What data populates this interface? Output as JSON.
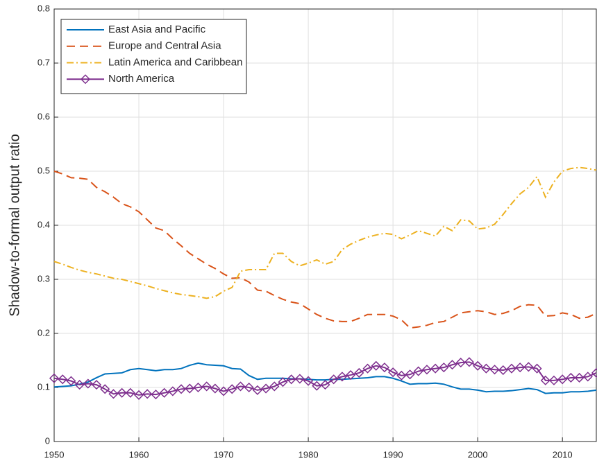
{
  "chart_data": {
    "type": "line",
    "y_label": "Shadow-to-formal output ratio",
    "x": [
      1950,
      1951,
      1952,
      1953,
      1954,
      1955,
      1956,
      1957,
      1958,
      1959,
      1960,
      1961,
      1962,
      1963,
      1964,
      1965,
      1966,
      1967,
      1968,
      1969,
      1970,
      1971,
      1972,
      1973,
      1974,
      1975,
      1976,
      1977,
      1978,
      1979,
      1980,
      1981,
      1982,
      1983,
      1984,
      1985,
      1986,
      1987,
      1988,
      1989,
      1990,
      1991,
      1992,
      1993,
      1994,
      1995,
      1996,
      1997,
      1998,
      1999,
      2000,
      2001,
      2002,
      2003,
      2004,
      2005,
      2006,
      2007,
      2008,
      2009,
      2010,
      2011,
      2012,
      2013,
      2014
    ],
    "series": [
      {
        "name": "East Asia and Pacific",
        "color": "#0072BD",
        "style": "solid",
        "values": [
          0.101,
          0.102,
          0.103,
          0.106,
          0.11,
          0.118,
          0.125,
          0.126,
          0.127,
          0.133,
          0.135,
          0.133,
          0.131,
          0.133,
          0.133,
          0.135,
          0.141,
          0.145,
          0.142,
          0.141,
          0.14,
          0.135,
          0.134,
          0.122,
          0.115,
          0.117,
          0.117,
          0.117,
          0.116,
          0.116,
          0.115,
          0.114,
          0.114,
          0.115,
          0.115,
          0.116,
          0.117,
          0.118,
          0.12,
          0.12,
          0.117,
          0.112,
          0.106,
          0.107,
          0.107,
          0.108,
          0.106,
          0.101,
          0.097,
          0.097,
          0.095,
          0.092,
          0.093,
          0.093,
          0.094,
          0.096,
          0.098,
          0.096,
          0.089,
          0.09,
          0.09,
          0.092,
          0.092,
          0.093,
          0.095
        ]
      },
      {
        "name": "Europe and Central Asia",
        "color": "#D95319",
        "style": "dashed",
        "values": [
          0.5,
          0.495,
          0.488,
          0.487,
          0.485,
          0.47,
          0.462,
          0.452,
          0.44,
          0.434,
          0.425,
          0.41,
          0.395,
          0.39,
          0.375,
          0.362,
          0.348,
          0.338,
          0.328,
          0.32,
          0.31,
          0.302,
          0.303,
          0.295,
          0.28,
          0.278,
          0.27,
          0.263,
          0.258,
          0.255,
          0.245,
          0.235,
          0.228,
          0.223,
          0.222,
          0.222,
          0.228,
          0.235,
          0.235,
          0.235,
          0.232,
          0.225,
          0.21,
          0.212,
          0.215,
          0.22,
          0.222,
          0.23,
          0.238,
          0.24,
          0.242,
          0.24,
          0.235,
          0.237,
          0.242,
          0.25,
          0.253,
          0.252,
          0.232,
          0.233,
          0.238,
          0.235,
          0.228,
          0.23,
          0.237
        ]
      },
      {
        "name": "Latin America and Caribbean",
        "color": "#EDB120",
        "style": "dashdot",
        "values": [
          0.333,
          0.328,
          0.322,
          0.317,
          0.313,
          0.31,
          0.306,
          0.302,
          0.3,
          0.296,
          0.292,
          0.288,
          0.283,
          0.279,
          0.275,
          0.272,
          0.27,
          0.268,
          0.265,
          0.268,
          0.278,
          0.285,
          0.315,
          0.318,
          0.318,
          0.318,
          0.348,
          0.348,
          0.333,
          0.325,
          0.33,
          0.336,
          0.328,
          0.333,
          0.355,
          0.365,
          0.372,
          0.378,
          0.382,
          0.385,
          0.383,
          0.375,
          0.382,
          0.39,
          0.385,
          0.38,
          0.398,
          0.39,
          0.41,
          0.408,
          0.393,
          0.395,
          0.402,
          0.42,
          0.44,
          0.458,
          0.47,
          0.49,
          0.452,
          0.48,
          0.5,
          0.505,
          0.507,
          0.505,
          0.502
        ]
      },
      {
        "name": "North America",
        "color": "#7E2F8E",
        "style": "diamond",
        "values": [
          0.117,
          0.115,
          0.112,
          0.105,
          0.107,
          0.105,
          0.097,
          0.088,
          0.09,
          0.09,
          0.086,
          0.088,
          0.087,
          0.09,
          0.093,
          0.097,
          0.098,
          0.1,
          0.102,
          0.098,
          0.093,
          0.097,
          0.102,
          0.1,
          0.095,
          0.098,
          0.102,
          0.11,
          0.115,
          0.116,
          0.112,
          0.103,
          0.105,
          0.115,
          0.12,
          0.123,
          0.127,
          0.135,
          0.14,
          0.137,
          0.128,
          0.122,
          0.124,
          0.13,
          0.133,
          0.135,
          0.137,
          0.142,
          0.146,
          0.147,
          0.14,
          0.135,
          0.133,
          0.132,
          0.135,
          0.137,
          0.138,
          0.135,
          0.113,
          0.113,
          0.115,
          0.118,
          0.118,
          0.12,
          0.127
        ]
      }
    ],
    "xlim": [
      1950,
      2014
    ],
    "xticks": [
      1950,
      1960,
      1970,
      1980,
      1990,
      2000,
      2010
    ],
    "ylim": [
      0,
      0.8
    ],
    "yticks": [
      0,
      0.1,
      0.2,
      0.3,
      0.4,
      0.5,
      0.6,
      0.7,
      0.8
    ],
    "grid": true,
    "legend": "top-left"
  }
}
